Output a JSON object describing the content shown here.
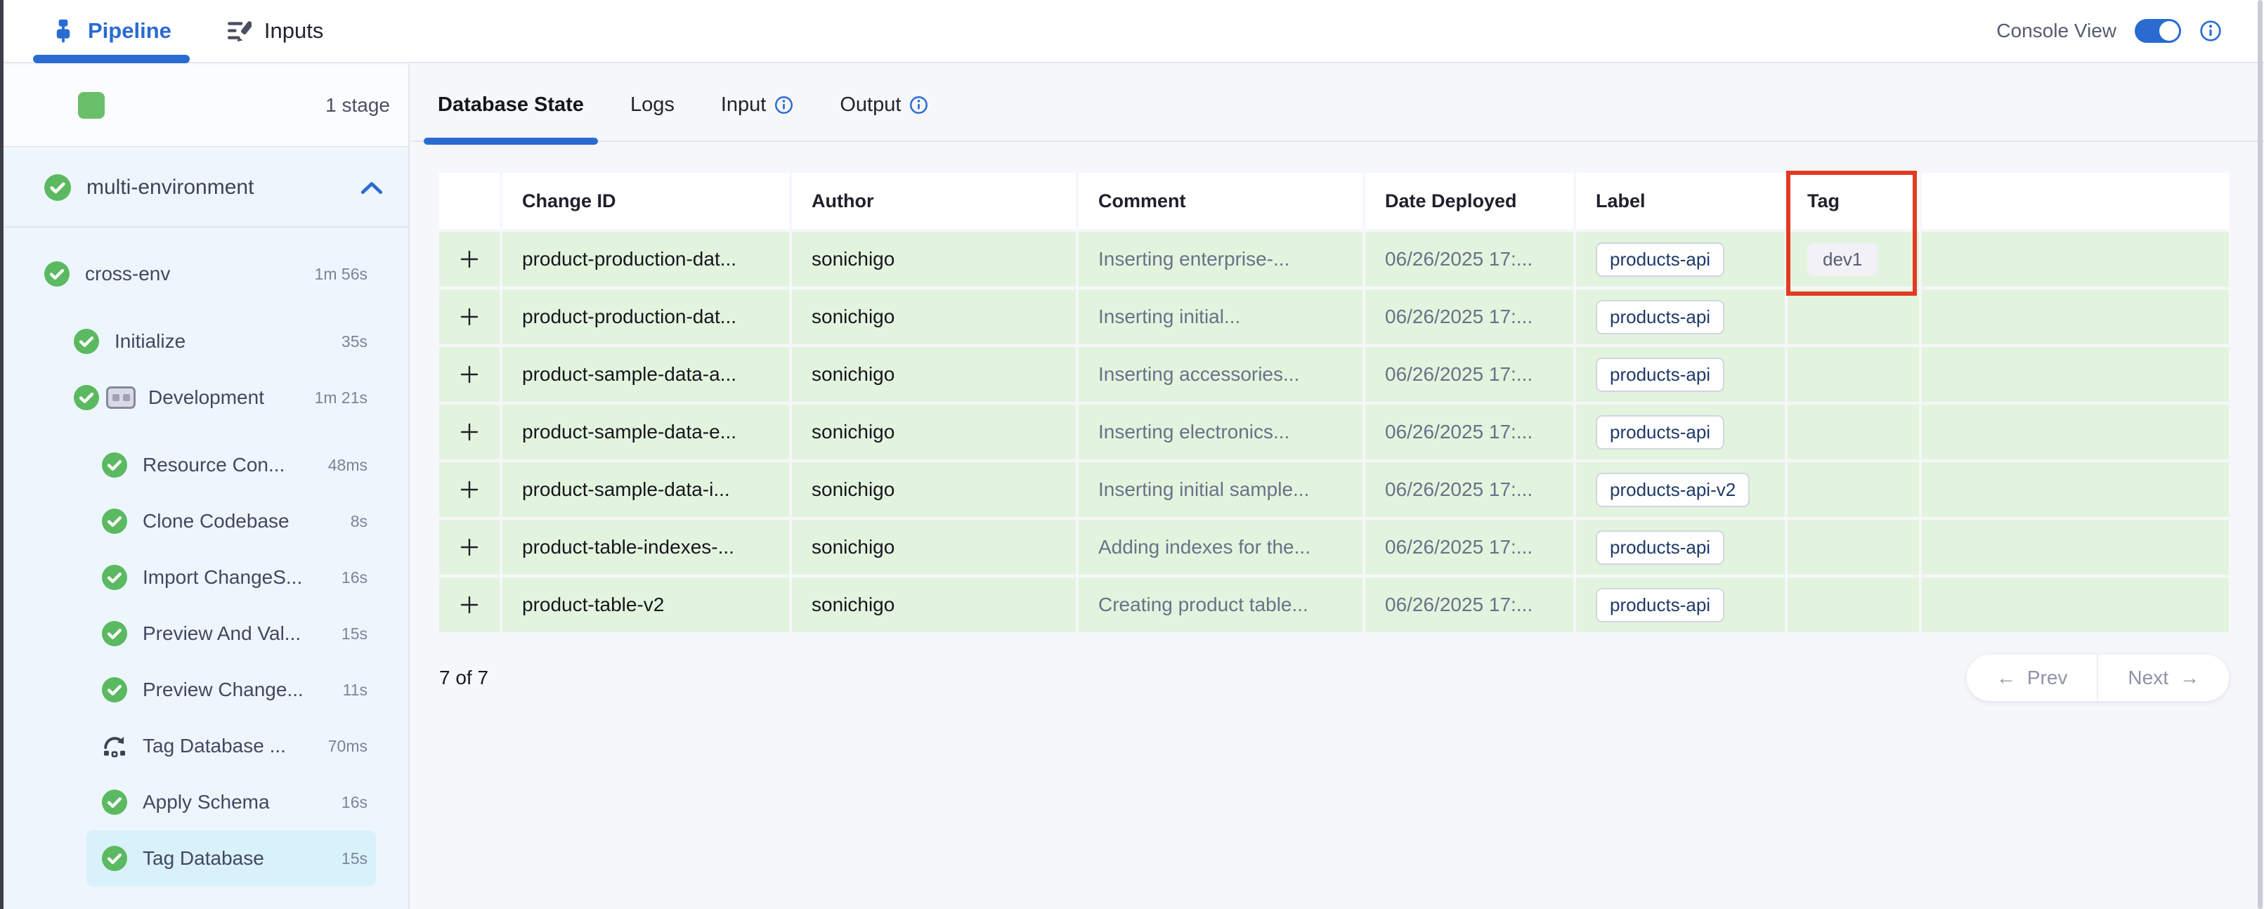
{
  "top_bar": {
    "pipeline_tab": "Pipeline",
    "inputs_tab": "Inputs",
    "console_view_label": "Console View",
    "console_view_on": true
  },
  "sidebar": {
    "stage_count_label": "1 stage",
    "root_stage": {
      "label": "multi-environment",
      "status": "success",
      "expanded": true
    },
    "tree": [
      {
        "label": "cross-env",
        "duration": "1m 56s",
        "level": 1,
        "icon": "check",
        "selected": false,
        "gap_before": false
      },
      {
        "label": "Initialize",
        "duration": "35s",
        "level": 2,
        "icon": "check",
        "selected": false,
        "gap_before": true
      },
      {
        "label": "Development",
        "duration": "1m 21s",
        "level": 2,
        "icon": "check",
        "selected": false,
        "gap_before": false,
        "extra_icon": "matrix"
      },
      {
        "label": "Resource Con...",
        "duration": "48ms",
        "level": 3,
        "icon": "check",
        "selected": false,
        "gap_before": true
      },
      {
        "label": "Clone Codebase",
        "duration": "8s",
        "level": 3,
        "icon": "check",
        "selected": false,
        "gap_before": false
      },
      {
        "label": "Import ChangeS...",
        "duration": "16s",
        "level": 3,
        "icon": "check",
        "selected": false,
        "gap_before": false
      },
      {
        "label": "Preview And Val...",
        "duration": "15s",
        "level": 3,
        "icon": "check",
        "selected": false,
        "gap_before": false
      },
      {
        "label": "Preview Change...",
        "duration": "11s",
        "level": 3,
        "icon": "check",
        "selected": false,
        "gap_before": false
      },
      {
        "label": "Tag Database ...",
        "duration": "70ms",
        "level": 3,
        "icon": "rollback",
        "selected": false,
        "gap_before": false
      },
      {
        "label": "Apply Schema",
        "duration": "16s",
        "level": 3,
        "icon": "check",
        "selected": false,
        "gap_before": false
      },
      {
        "label": "Tag Database",
        "duration": "15s",
        "level": 3,
        "icon": "check",
        "selected": true,
        "gap_before": false
      }
    ]
  },
  "main": {
    "tabs": [
      {
        "label": "Database State",
        "active": true,
        "info": false
      },
      {
        "label": "Logs",
        "active": false,
        "info": false
      },
      {
        "label": "Input",
        "active": false,
        "info": true
      },
      {
        "label": "Output",
        "active": false,
        "info": true
      }
    ],
    "table": {
      "columns": [
        "",
        "Change ID",
        "Author",
        "Comment",
        "Date Deployed",
        "Label",
        "Tag",
        ""
      ],
      "rows": [
        {
          "change_id": "product-production-dat...",
          "author": "sonichigo",
          "comment": "Inserting enterprise-...",
          "date": "06/26/2025 17:...",
          "label": "products-api",
          "tag": "dev1"
        },
        {
          "change_id": "product-production-dat...",
          "author": "sonichigo",
          "comment": "Inserting initial...",
          "date": "06/26/2025 17:...",
          "label": "products-api",
          "tag": ""
        },
        {
          "change_id": "product-sample-data-a...",
          "author": "sonichigo",
          "comment": "Inserting accessories...",
          "date": "06/26/2025 17:...",
          "label": "products-api",
          "tag": ""
        },
        {
          "change_id": "product-sample-data-e...",
          "author": "sonichigo",
          "comment": "Inserting electronics...",
          "date": "06/26/2025 17:...",
          "label": "products-api",
          "tag": ""
        },
        {
          "change_id": "product-sample-data-i...",
          "author": "sonichigo",
          "comment": "Inserting initial sample...",
          "date": "06/26/2025 17:...",
          "label": "products-api-v2",
          "tag": ""
        },
        {
          "change_id": "product-table-indexes-...",
          "author": "sonichigo",
          "comment": "Adding indexes for the...",
          "date": "06/26/2025 17:...",
          "label": "products-api",
          "tag": ""
        },
        {
          "change_id": "product-table-v2",
          "author": "sonichigo",
          "comment": "Creating product table...",
          "date": "06/26/2025 17:...",
          "label": "products-api",
          "tag": ""
        }
      ],
      "expander_icon": "+",
      "tag_column_highlighted": true
    },
    "footer": {
      "count_label": "7 of 7",
      "prev_label": "Prev",
      "next_label": "Next",
      "prev_icon": "←",
      "next_icon": "→"
    }
  },
  "colors": {
    "accent_blue": "#2a6bd2",
    "success_green": "#5bb961",
    "stage_square_green": "#6abf69",
    "row_green": "#e3f4de",
    "highlight_red": "#e23b23",
    "selected_item_bg": "#d9f1fb",
    "sidebar_bg": "#edf6fc"
  }
}
